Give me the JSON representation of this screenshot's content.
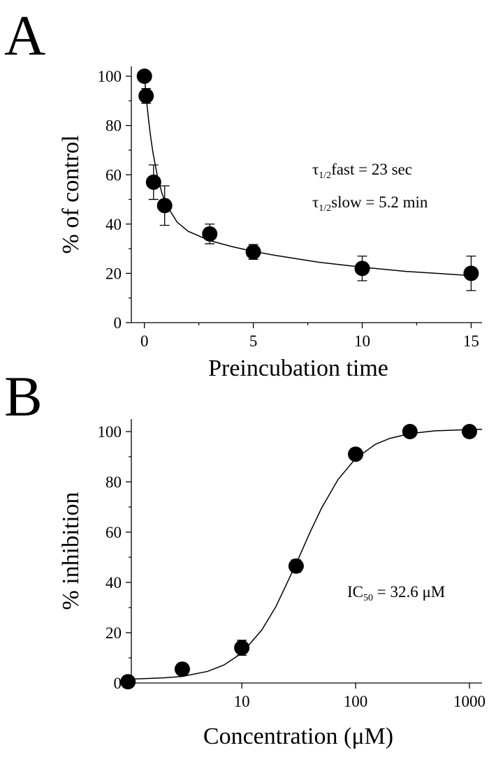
{
  "chart_data": [
    {
      "type": "scatter",
      "panel": "A",
      "x_label": "Preincubation time",
      "y_label": "% of control",
      "xlim": [
        -0.6,
        15.5
      ],
      "ylim": [
        0,
        104
      ],
      "xticks": [
        0,
        5,
        10,
        15
      ],
      "xminor": [
        2.5,
        7.5,
        12.5
      ],
      "yticks": [
        0,
        20,
        40,
        60,
        80,
        100
      ],
      "yminor": [
        10,
        30,
        50,
        70,
        90
      ],
      "color": "#000000",
      "x": [
        0,
        0.08,
        0.42,
        0.93,
        3,
        5,
        10,
        15
      ],
      "values": [
        100,
        92,
        57,
        47.5,
        36,
        28.7,
        22,
        20
      ],
      "errors": [
        1,
        3,
        7,
        8,
        4,
        3,
        5,
        7
      ],
      "fit": {
        "x": [
          0,
          0.1,
          0.2,
          0.3,
          0.4,
          0.6,
          0.8,
          1,
          1.5,
          2,
          3,
          4,
          5,
          6,
          8,
          10,
          12,
          15
        ],
        "values": [
          100,
          90,
          81.6,
          74.5,
          68.6,
          59.3,
          52.7,
          47.9,
          40.8,
          37.1,
          33.3,
          30.9,
          28.9,
          27.3,
          24.5,
          22.5,
          20.8,
          19.1
        ]
      },
      "annotations": [
        {
          "symbol": "τ",
          "sub": "1/2",
          "text": "fast = 23 sec"
        },
        {
          "symbol": "τ",
          "sub": "1/2",
          "text": "slow = 5.2 min"
        }
      ]
    },
    {
      "type": "scatter",
      "panel": "B",
      "x_label": "Concentration (μM)",
      "y_label": "% inhibition",
      "x_scale": "log",
      "xlim": [
        1.07,
        1290
      ],
      "ylim": [
        0,
        105
      ],
      "xticks": [
        10,
        100,
        1000
      ],
      "yticks": [
        0,
        20,
        40,
        60,
        80,
        100
      ],
      "yminor": [
        10,
        30,
        50,
        70,
        90
      ],
      "color": "#000000",
      "x": [
        1,
        3,
        10,
        30,
        100,
        300,
        1000
      ],
      "values": [
        0.5,
        5.5,
        14,
        46.5,
        91,
        100,
        100
      ],
      "errors": [
        0.5,
        1,
        3,
        2.5,
        1,
        1,
        1
      ],
      "fit": {
        "x": [
          1,
          2,
          3,
          5,
          7,
          10,
          15,
          20,
          30,
          40,
          50,
          70,
          100,
          150,
          200,
          300,
          500,
          1000,
          1290
        ],
        "values": [
          1.5,
          2.0,
          2.6,
          4.6,
          7.2,
          11.9,
          21.1,
          30.5,
          47.4,
          60.2,
          69.4,
          80.9,
          89.3,
          95.0,
          97.3,
          99.2,
          100.3,
          100.8,
          100.9
        ]
      },
      "annotations": [
        {
          "symbol": "IC",
          "sub": "50",
          "text": " = 32.6 μM"
        }
      ]
    }
  ]
}
